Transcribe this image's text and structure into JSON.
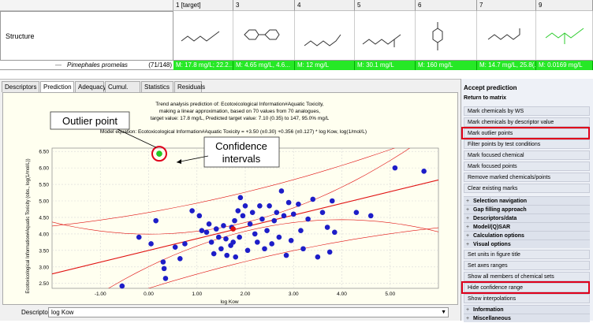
{
  "matrix": {
    "columns": [
      {
        "label": "1 [target]"
      },
      {
        "label": "3"
      },
      {
        "label": "4"
      },
      {
        "label": "5"
      },
      {
        "label": "6"
      },
      {
        "label": "7"
      },
      {
        "label": "9"
      }
    ],
    "structure_label": "Structure",
    "species_name": "Pimephales promelas",
    "species_count": "(71/148)",
    "values": [
      "M: 17.8 mg/L; 22.2...",
      "M: 4.65 mg/L, 4.6...",
      "M: 12 mg/L",
      "M: 30.1 mg/L",
      "M: 160 mg/L",
      "M: 14.7 mg/L, 25.8(...",
      "M: 0.0169 mg/L"
    ]
  },
  "tabs": [
    "Descriptors",
    "Prediction",
    "Adequacy",
    "Cumul. freq.",
    "Statistics",
    "Residuals"
  ],
  "chart_data": {
    "type": "scatter",
    "title_lines": [
      "Trend analysis prediction of: Ecotoxicological Information#Aquatic Toxicity,",
      "making a linear approximation, based on 70 values from 70 analogues,",
      "target value: 17.8 mg/L, Predicted target value: 7.10 (0.35) to 147, 95.0% mg/L"
    ],
    "equation": "Model equation:  Ecotoxicological Information#Aquatic Toxicity = +3.50 (±0.30) +0.356 (±0.127) * log Kow,  log(1/mol/L)",
    "xlabel": "log Kow",
    "ylabel": "Ecotoxicological Information#Aquatic Toxicity (obs., log(1/mol/L))",
    "xlim": [
      -2.0,
      6.0
    ],
    "ylim": [
      2.35,
      6.6
    ],
    "xticks": [
      "-1.00",
      "0.00",
      "1.00",
      "2.00",
      "3.00",
      "4.00",
      "5.00"
    ],
    "yticks": [
      "2.50",
      "3.00",
      "3.50",
      "4.00",
      "4.50",
      "5.00",
      "5.50",
      "6.00",
      "6.50"
    ],
    "regression": {
      "intercept": 3.5,
      "slope": 0.356
    },
    "confidence_offset": 0.38,
    "prediction_offset": 1.05,
    "outlier": {
      "x": 0.22,
      "y": 6.43
    },
    "target": {
      "x": 1.75,
      "y": 4.15
    },
    "points": [
      [
        -0.55,
        2.42
      ],
      [
        -0.2,
        3.9
      ],
      [
        0.05,
        3.7
      ],
      [
        0.15,
        4.4
      ],
      [
        0.3,
        3.15
      ],
      [
        0.32,
        2.95
      ],
      [
        0.35,
        2.65
      ],
      [
        0.55,
        3.6
      ],
      [
        0.65,
        3.25
      ],
      [
        0.75,
        3.7
      ],
      [
        0.9,
        4.7
      ],
      [
        1.05,
        4.55
      ],
      [
        1.1,
        4.1
      ],
      [
        1.2,
        4.05
      ],
      [
        1.25,
        4.3
      ],
      [
        1.3,
        3.75
      ],
      [
        1.35,
        3.4
      ],
      [
        1.4,
        4.15
      ],
      [
        1.45,
        3.9
      ],
      [
        1.5,
        3.55
      ],
      [
        1.55,
        4.25
      ],
      [
        1.6,
        3.85
      ],
      [
        1.62,
        3.35
      ],
      [
        1.7,
        3.65
      ],
      [
        1.72,
        4.2
      ],
      [
        1.75,
        3.75
      ],
      [
        1.78,
        4.4
      ],
      [
        1.8,
        3.3
      ],
      [
        1.85,
        4.7
      ],
      [
        1.88,
        3.9
      ],
      [
        1.9,
        5.1
      ],
      [
        1.95,
        4.55
      ],
      [
        2.0,
        4.85
      ],
      [
        2.05,
        3.5
      ],
      [
        2.1,
        4.3
      ],
      [
        2.15,
        4.65
      ],
      [
        2.2,
        4.0
      ],
      [
        2.25,
        3.75
      ],
      [
        2.3,
        4.85
      ],
      [
        2.35,
        4.45
      ],
      [
        2.4,
        3.55
      ],
      [
        2.45,
        4.1
      ],
      [
        2.5,
        4.85
      ],
      [
        2.55,
        3.7
      ],
      [
        2.6,
        4.4
      ],
      [
        2.65,
        4.65
      ],
      [
        2.7,
        3.9
      ],
      [
        2.75,
        5.3
      ],
      [
        2.8,
        4.55
      ],
      [
        2.85,
        3.35
      ],
      [
        2.9,
        4.95
      ],
      [
        2.95,
        3.8
      ],
      [
        3.0,
        4.6
      ],
      [
        3.1,
        4.9
      ],
      [
        3.15,
        4.1
      ],
      [
        3.2,
        3.55
      ],
      [
        3.3,
        4.45
      ],
      [
        3.4,
        5.05
      ],
      [
        3.5,
        3.3
      ],
      [
        3.6,
        4.65
      ],
      [
        3.7,
        4.2
      ],
      [
        3.75,
        3.45
      ],
      [
        3.8,
        5.0
      ],
      [
        3.85,
        4.05
      ],
      [
        4.3,
        4.65
      ],
      [
        4.6,
        4.55
      ],
      [
        5.1,
        6.0
      ],
      [
        5.7,
        5.9
      ]
    ]
  },
  "annotations": {
    "outlier_label": "Outlier point",
    "confidence_label": "Confidence intervals"
  },
  "descriptor": {
    "label": "Descriptor X:",
    "value": "log Kow"
  },
  "right_panel": {
    "accept_prediction": "Accept prediction",
    "return_to_matrix": "Return to matrix",
    "buttons": [
      "Mark chemicals by WS",
      "Mark chemicals by descriptor value",
      "Mark outlier points",
      "Filter points by test conditions",
      "Mark focused chemical",
      "Mark focused points",
      "Remove marked chemicals/points",
      "Clear existing marks"
    ],
    "sections_top": [
      "Selection navigation",
      "Gap filling approach",
      "Descriptors/data",
      "Model/(Q)SAR",
      "Calculation options",
      "Visual options"
    ],
    "visual_buttons": [
      "Set units in figure title",
      "Set axes ranges",
      "Show all members of chemical sets",
      "Hide confidence range",
      "Show interpolations"
    ],
    "sections_bottom": [
      "Information",
      "Miscellaneous"
    ]
  },
  "colors": {
    "point": "#1d1dc8",
    "outlier_point": "#22cc22",
    "target_point": "#e01010",
    "regression_line": "#e01010",
    "highlight": "#e0001b",
    "value_cell": "#26e826"
  }
}
